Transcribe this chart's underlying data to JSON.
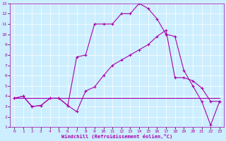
{
  "xlabel": "Windchill (Refroidissement éolien,°C)",
  "xlim": [
    -0.5,
    23.5
  ],
  "ylim": [
    1,
    13
  ],
  "xticks": [
    0,
    1,
    2,
    3,
    4,
    5,
    6,
    7,
    8,
    9,
    10,
    11,
    12,
    13,
    14,
    15,
    16,
    17,
    18,
    19,
    20,
    21,
    22,
    23
  ],
  "yticks": [
    1,
    2,
    3,
    4,
    5,
    6,
    7,
    8,
    9,
    10,
    11,
    12,
    13
  ],
  "bg_color": "#cceeff",
  "line_color": "#aa00aa",
  "line1_x": [
    0,
    1,
    2,
    3,
    4,
    5,
    6,
    7,
    8,
    9,
    10,
    11,
    12,
    13,
    14,
    15,
    16,
    17,
    18,
    19,
    20,
    21,
    22,
    23
  ],
  "line1_y": [
    3.8,
    4.0,
    3.0,
    3.1,
    3.8,
    3.8,
    3.1,
    2.5,
    4.5,
    4.9,
    6.0,
    7.0,
    7.5,
    8.0,
    8.5,
    9.0,
    9.8,
    10.4,
    5.8,
    5.8,
    5.5,
    4.8,
    3.5,
    3.5
  ],
  "line2_x": [
    0,
    1,
    2,
    3,
    4,
    5,
    6,
    7,
    8,
    9,
    10,
    11,
    12,
    13,
    14,
    15,
    16,
    17,
    18,
    19,
    20,
    21,
    22,
    23
  ],
  "line2_y": [
    3.8,
    4.0,
    3.0,
    3.1,
    3.8,
    3.8,
    3.1,
    7.8,
    8.0,
    11.0,
    11.0,
    11.0,
    12.0,
    12.0,
    13.0,
    12.5,
    11.5,
    10.0,
    9.8,
    6.5,
    5.0,
    3.5,
    1.2,
    3.5
  ],
  "line3_x": [
    0,
    1,
    2,
    3,
    4,
    5,
    6,
    7,
    8,
    9,
    10,
    11,
    12,
    13,
    14,
    15,
    16,
    17,
    18,
    19,
    20,
    21,
    22,
    23
  ],
  "line3_y": [
    3.8,
    3.8,
    3.8,
    3.8,
    3.8,
    3.8,
    3.8,
    3.8,
    3.8,
    3.8,
    3.8,
    3.8,
    3.8,
    3.8,
    3.8,
    3.8,
    3.8,
    3.8,
    3.8,
    3.8,
    3.8,
    3.8,
    3.8,
    3.8
  ]
}
